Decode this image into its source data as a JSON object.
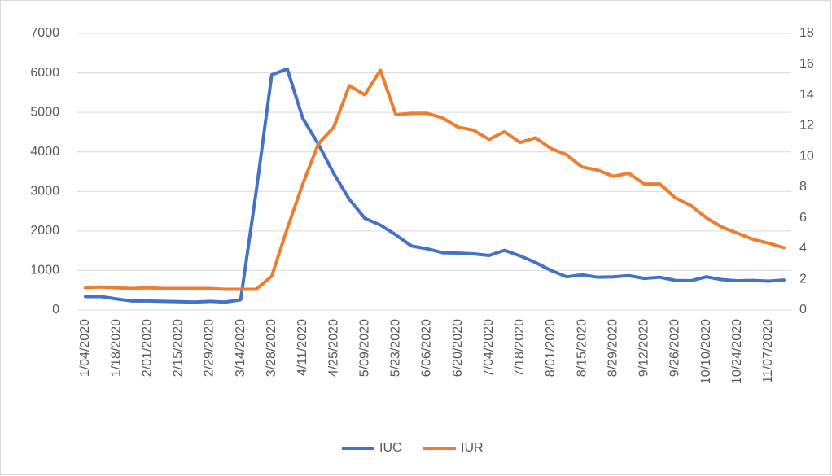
{
  "chart_data": {
    "type": "line",
    "categories": [
      "1/04/2020",
      null,
      "1/18/2020",
      null,
      "2/01/2020",
      null,
      "2/15/2020",
      null,
      "2/29/2020",
      null,
      "3/14/2020",
      null,
      "3/28/2020",
      null,
      "4/11/2020",
      null,
      "4/25/2020",
      null,
      "5/09/2020",
      null,
      "5/23/2020",
      null,
      "6/06/2020",
      null,
      "6/20/2020",
      null,
      "7/04/2020",
      null,
      "7/18/2020",
      null,
      "8/01/2020",
      null,
      "8/15/2020",
      null,
      "8/29/2020",
      null,
      "9/12/2020",
      null,
      "9/26/2020",
      null,
      "10/10/2020",
      null,
      "10/24/2020",
      null,
      "11/07/2020",
      null
    ],
    "series": [
      {
        "name": "IUC",
        "color": "#4472c4",
        "values": [
          340,
          340,
          280,
          230,
          230,
          220,
          210,
          200,
          220,
          200,
          260,
          3000,
          5950,
          6100,
          4850,
          4200,
          3450,
          2800,
          2320,
          2150,
          1900,
          1620,
          1550,
          1450,
          1440,
          1420,
          1380,
          1510,
          1370,
          1200,
          1000,
          840,
          890,
          830,
          840,
          870,
          800,
          830,
          750,
          740,
          840,
          770,
          740,
          750,
          730,
          760
        ]
      },
      {
        "name": "IUR",
        "color": "#ed7d31",
        "axis": "y2",
        "values": [
          1.45,
          1.5,
          1.45,
          1.4,
          1.45,
          1.4,
          1.4,
          1.4,
          1.4,
          1.35,
          1.35,
          1.35,
          2.2,
          5.3,
          8.2,
          10.8,
          11.9,
          14.6,
          14.0,
          15.6,
          12.7,
          12.8,
          12.8,
          12.5,
          11.9,
          11.7,
          11.1,
          11.6,
          10.9,
          11.2,
          10.5,
          10.1,
          9.3,
          9.1,
          8.7,
          8.9,
          8.2,
          8.2,
          7.3,
          6.8,
          6.0,
          5.4,
          5.0,
          4.6,
          4.35,
          4.05
        ]
      }
    ],
    "ylim": [
      0,
      7000
    ],
    "yticks": [
      0,
      1000,
      2000,
      3000,
      4000,
      5000,
      6000,
      7000
    ],
    "y2lim": [
      0,
      18
    ],
    "y2ticks": [
      0,
      2,
      4,
      6,
      8,
      10,
      12,
      14,
      16,
      18
    ],
    "grid": true,
    "legend": "bottom"
  }
}
